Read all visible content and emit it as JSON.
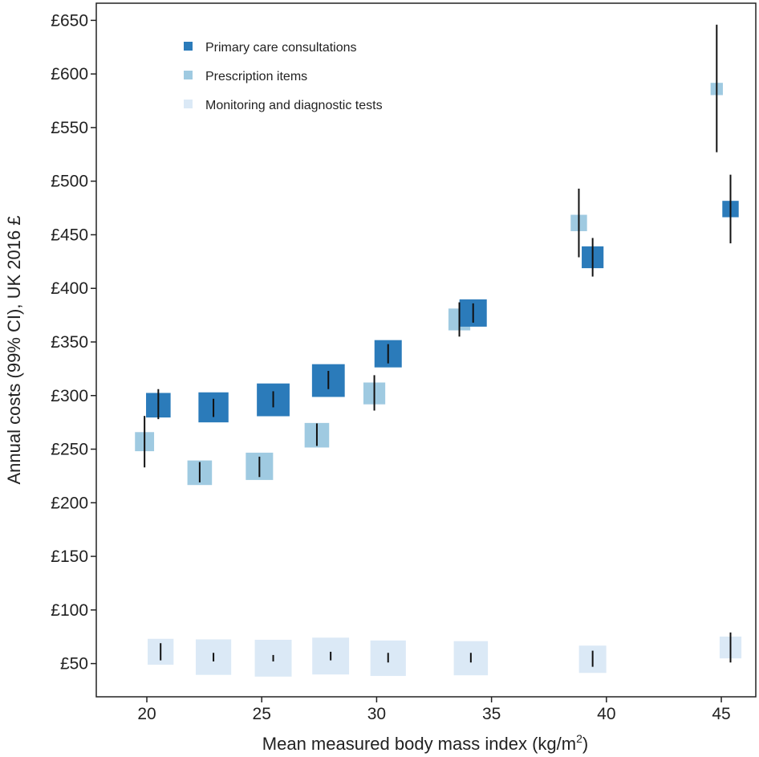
{
  "chart_data": {
    "type": "scatter",
    "xlabel": "Mean measured body mass index (kg/m",
    "xlabel_sup": "2",
    "xlabel_end": ")",
    "ylabel": "Annual costs (99% CI), UK 2016 £",
    "xlim": [
      17.8,
      46.5
    ],
    "ylim": [
      19,
      666
    ],
    "x_ticks": [
      20,
      25,
      30,
      35,
      40,
      45
    ],
    "y_ticks": [
      {
        "value": 50,
        "label": "£50"
      },
      {
        "value": 100,
        "label": "£100"
      },
      {
        "value": 150,
        "label": "£150"
      },
      {
        "value": 200,
        "label": "£200"
      },
      {
        "value": 250,
        "label": "£250"
      },
      {
        "value": 300,
        "label": "£300"
      },
      {
        "value": 350,
        "label": "£350"
      },
      {
        "value": 400,
        "label": "£400"
      },
      {
        "value": 450,
        "label": "£450"
      },
      {
        "value": 500,
        "label": "£500"
      },
      {
        "value": 550,
        "label": "£550"
      },
      {
        "value": 600,
        "label": "£600"
      },
      {
        "value": 650,
        "label": "£650"
      }
    ],
    "legend_position": "top-left",
    "series": [
      {
        "name": "Primary care consultations",
        "color": "#2b7bba",
        "points": [
          {
            "x": 20.5,
            "y": 291,
            "lo": 278,
            "hi": 306,
            "size": 0.9
          },
          {
            "x": 22.9,
            "y": 289,
            "lo": 280,
            "hi": 297,
            "size": 1.1
          },
          {
            "x": 25.5,
            "y": 296,
            "lo": 289,
            "hi": 304,
            "size": 1.2
          },
          {
            "x": 27.9,
            "y": 314,
            "lo": 306,
            "hi": 323,
            "size": 1.2
          },
          {
            "x": 30.5,
            "y": 339,
            "lo": 330,
            "hi": 348,
            "size": 1.0
          },
          {
            "x": 34.2,
            "y": 377,
            "lo": 368,
            "hi": 386,
            "size": 1.0
          },
          {
            "x": 39.4,
            "y": 429,
            "lo": 411,
            "hi": 447,
            "size": 0.8
          },
          {
            "x": 45.4,
            "y": 474,
            "lo": 442,
            "hi": 506,
            "size": 0.6
          }
        ]
      },
      {
        "name": "Prescription items",
        "color": "#9fcae1",
        "points": [
          {
            "x": 19.9,
            "y": 257,
            "lo": 233,
            "hi": 281,
            "size": 0.7
          },
          {
            "x": 22.3,
            "y": 228,
            "lo": 219,
            "hi": 238,
            "size": 0.9
          },
          {
            "x": 24.9,
            "y": 234,
            "lo": 224,
            "hi": 243,
            "size": 1.0
          },
          {
            "x": 27.4,
            "y": 263,
            "lo": 253,
            "hi": 274,
            "size": 0.9
          },
          {
            "x": 29.9,
            "y": 302,
            "lo": 286,
            "hi": 319,
            "size": 0.8
          },
          {
            "x": 33.6,
            "y": 371,
            "lo": 355,
            "hi": 387,
            "size": 0.8
          },
          {
            "x": 38.8,
            "y": 461,
            "lo": 429,
            "hi": 493,
            "size": 0.6
          },
          {
            "x": 44.8,
            "y": 586,
            "lo": 527,
            "hi": 646,
            "size": 0.45
          }
        ]
      },
      {
        "name": "Monitoring and diagnostic tests",
        "color": "#dbe9f6",
        "points": [
          {
            "x": 20.6,
            "y": 61,
            "lo": 53,
            "hi": 69,
            "size": 0.95
          },
          {
            "x": 22.9,
            "y": 56,
            "lo": 52,
            "hi": 60,
            "size": 1.3
          },
          {
            "x": 25.5,
            "y": 55,
            "lo": 52,
            "hi": 58,
            "size": 1.35
          },
          {
            "x": 28.0,
            "y": 57,
            "lo": 53,
            "hi": 61,
            "size": 1.35
          },
          {
            "x": 30.5,
            "y": 55,
            "lo": 51,
            "hi": 60,
            "size": 1.3
          },
          {
            "x": 34.1,
            "y": 55,
            "lo": 51,
            "hi": 60,
            "size": 1.25
          },
          {
            "x": 39.4,
            "y": 54,
            "lo": 47,
            "hi": 62,
            "size": 1.0
          },
          {
            "x": 45.4,
            "y": 65,
            "lo": 51,
            "hi": 79,
            "size": 0.8
          }
        ]
      }
    ]
  }
}
